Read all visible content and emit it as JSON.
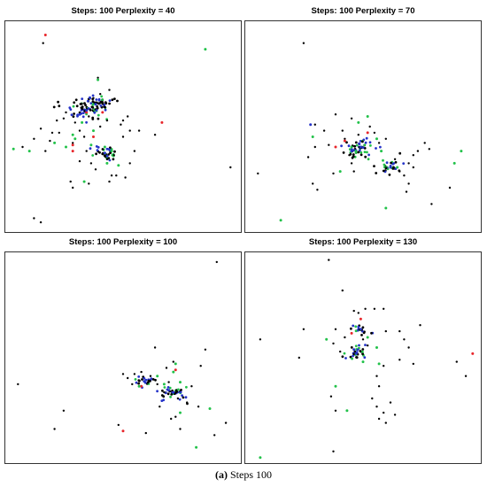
{
  "caption": {
    "label": "(a)",
    "text": "Steps 100"
  },
  "colors": {
    "black": "#000000",
    "red": "#e8262b",
    "green": "#22c24a",
    "blue": "#2432c8"
  },
  "chart_data": [
    {
      "type": "scatter",
      "title": "Steps: 100  Perplexity = 40",
      "xlim": [
        0,
        100
      ],
      "ylim": [
        0,
        100
      ],
      "grid": false,
      "axes_labels": false,
      "clusters": [
        {
          "x": 33,
          "y": 58,
          "n": 55,
          "s": 4
        },
        {
          "x": 39,
          "y": 61,
          "n": 45,
          "s": 3
        },
        {
          "x": 42,
          "y": 37,
          "n": 35,
          "s": 3
        }
      ],
      "series": [
        {
          "color": "black",
          "points": [
            [
              15,
              91
            ],
            [
              39,
              74
            ],
            [
              37,
              64
            ],
            [
              14,
              49
            ],
            [
              6,
              40
            ],
            [
              11,
              44
            ],
            [
              16,
              38
            ],
            [
              22,
              47
            ],
            [
              35,
              55
            ],
            [
              50,
              53
            ],
            [
              53,
              48
            ],
            [
              64,
              46
            ],
            [
              28,
              20
            ],
            [
              27,
              23
            ],
            [
              35,
              22
            ],
            [
              45,
              26
            ],
            [
              51,
              25
            ],
            [
              46,
              36
            ],
            [
              55,
              38
            ],
            [
              57,
              48
            ],
            [
              31,
              48
            ],
            [
              19,
              47
            ],
            [
              11,
              5
            ],
            [
              14,
              3
            ],
            [
              97,
              30
            ],
            [
              47,
              26
            ],
            [
              44,
              23
            ],
            [
              36,
              32
            ],
            [
              31,
              33
            ],
            [
              49,
              51
            ],
            [
              52,
              55
            ],
            [
              43,
              53
            ],
            [
              40,
              50
            ],
            [
              24,
              54
            ],
            [
              21,
              53
            ],
            [
              18,
              43
            ],
            [
              33,
              45
            ],
            [
              34,
              38
            ],
            [
              53,
              32
            ],
            [
              38,
              29
            ],
            [
              50,
              45
            ],
            [
              28,
              42
            ],
            [
              29,
              52
            ],
            [
              40,
              66
            ],
            [
              25,
              57
            ],
            [
              44,
              68
            ]
          ]
        },
        {
          "color": "red",
          "points": [
            [
              16,
              95
            ],
            [
              34,
              57
            ],
            [
              67,
              52
            ],
            [
              28,
              38
            ],
            [
              28,
              41
            ],
            [
              37,
              45
            ],
            [
              41,
              57
            ]
          ]
        },
        {
          "color": "green",
          "points": [
            [
              86,
              88
            ],
            [
              2,
              39
            ],
            [
              9,
              38
            ],
            [
              25,
              40
            ],
            [
              33,
              23
            ],
            [
              43,
              32
            ],
            [
              42,
              40
            ],
            [
              48,
              31
            ],
            [
              28,
              46
            ],
            [
              36,
              41
            ],
            [
              37,
              48
            ],
            [
              39,
              73
            ],
            [
              32,
              52
            ],
            [
              29,
              44
            ],
            [
              45,
              38
            ],
            [
              20,
              42
            ]
          ]
        },
        {
          "color": "blue",
          "points": [
            [
              34,
              58
            ],
            [
              38,
              61
            ],
            [
              42,
              37
            ],
            [
              31,
              56
            ]
          ]
        }
      ]
    },
    {
      "type": "scatter",
      "title": "Steps: 100  Perplexity = 70",
      "xlim": [
        0,
        100
      ],
      "ylim": [
        0,
        100
      ],
      "grid": false,
      "axes_labels": false,
      "clusters": [
        {
          "x": 49,
          "y": 40,
          "n": 55,
          "s": 3.5
        },
        {
          "x": 62,
          "y": 30,
          "n": 30,
          "s": 3
        }
      ],
      "series": [
        {
          "color": "black",
          "points": [
            [
              24,
              91
            ],
            [
              29,
              51
            ],
            [
              35,
              41
            ],
            [
              41,
              48
            ],
            [
              44,
              36
            ],
            [
              46,
              28
            ],
            [
              45,
              54
            ],
            [
              55,
              47
            ],
            [
              57,
              42
            ],
            [
              64,
              34
            ],
            [
              70,
              32
            ],
            [
              72,
              30
            ],
            [
              74,
              38
            ],
            [
              77,
              42
            ],
            [
              79,
              39
            ],
            [
              80,
              12
            ],
            [
              88,
              20
            ],
            [
              69,
              18
            ],
            [
              4,
              27
            ],
            [
              30,
              19
            ],
            [
              28,
              22
            ],
            [
              26,
              35
            ],
            [
              29,
              40
            ],
            [
              38,
              56
            ],
            [
              53,
              50
            ],
            [
              60,
              44
            ],
            [
              66,
              28
            ],
            [
              68,
              26
            ],
            [
              70,
              22
            ],
            [
              45,
              32
            ],
            [
              37,
              27
            ],
            [
              72,
              36
            ],
            [
              42,
              44
            ],
            [
              33,
              48
            ],
            [
              48,
              46
            ]
          ]
        },
        {
          "color": "red",
          "points": [
            [
              42,
              43
            ],
            [
              38,
              40
            ],
            [
              52,
              47
            ]
          ]
        },
        {
          "color": "green",
          "points": [
            [
              28,
              45
            ],
            [
              40,
              28
            ],
            [
              48,
              52
            ],
            [
              52,
              55
            ],
            [
              56,
              44
            ],
            [
              58,
              38
            ],
            [
              65,
              30
            ],
            [
              93,
              38
            ],
            [
              90,
              32
            ],
            [
              60,
              10
            ],
            [
              14,
              4
            ],
            [
              45,
              40
            ]
          ]
        },
        {
          "color": "blue",
          "points": [
            [
              27,
              51
            ],
            [
              49,
              40
            ],
            [
              62,
              30
            ],
            [
              45,
              38
            ]
          ]
        }
      ]
    },
    {
      "type": "scatter",
      "title": "Steps: 100  Perplexity = 100",
      "xlim": [
        0,
        100
      ],
      "ylim": [
        0,
        100
      ],
      "grid": false,
      "axes_labels": false,
      "clusters": [
        {
          "x": 60,
          "y": 39,
          "n": 22,
          "s": 2.5
        },
        {
          "x": 72,
          "y": 33,
          "n": 38,
          "s": 3
        }
      ],
      "series": [
        {
          "color": "black",
          "points": [
            [
              91,
              97
            ],
            [
              64,
              55
            ],
            [
              50,
              42
            ],
            [
              52,
              40
            ],
            [
              54,
              37
            ],
            [
              55,
              42
            ],
            [
              58,
              43
            ],
            [
              62,
              41
            ],
            [
              65,
              37
            ],
            [
              68,
              33
            ],
            [
              70,
              38
            ],
            [
              74,
              30
            ],
            [
              78,
              28
            ],
            [
              80,
              36
            ],
            [
              84,
              46
            ],
            [
              86,
              54
            ],
            [
              95,
              18
            ],
            [
              4,
              37
            ],
            [
              24,
              24
            ],
            [
              20,
              15
            ],
            [
              48,
              17
            ],
            [
              60,
              13
            ],
            [
              71,
              20
            ],
            [
              73,
              21
            ],
            [
              75,
              15
            ],
            [
              90,
              12
            ],
            [
              72,
              48
            ],
            [
              69,
              45
            ],
            [
              66,
              26
            ],
            [
              83,
              26
            ]
          ]
        },
        {
          "color": "red",
          "points": [
            [
              50,
              14
            ],
            [
              58,
              36
            ],
            [
              73,
              44
            ]
          ]
        },
        {
          "color": "green",
          "points": [
            [
              73,
              47
            ],
            [
              65,
              41
            ],
            [
              72,
              43
            ],
            [
              75,
              38
            ],
            [
              88,
              25
            ],
            [
              75,
              23
            ],
            [
              82,
              6
            ],
            [
              57,
              36
            ],
            [
              68,
              37
            ]
          ]
        },
        {
          "color": "blue",
          "points": [
            [
              60,
              39
            ],
            [
              72,
              33
            ],
            [
              70,
              34
            ]
          ]
        }
      ]
    },
    {
      "type": "scatter",
      "title": "Steps: 100  Perplexity = 130",
      "xlim": [
        0,
        100
      ],
      "ylim": [
        0,
        100
      ],
      "grid": false,
      "axes_labels": false,
      "clusters": [
        {
          "x": 49,
          "y": 64,
          "n": 20,
          "s": 2
        },
        {
          "x": 47,
          "y": 52,
          "n": 30,
          "s": 2.5
        }
      ],
      "series": [
        {
          "color": "black",
          "points": [
            [
              35,
              98
            ],
            [
              41,
              83
            ],
            [
              46,
              73
            ],
            [
              51,
              74
            ],
            [
              55,
              74
            ],
            [
              59,
              74
            ],
            [
              48,
              72
            ],
            [
              24,
              64
            ],
            [
              37,
              57
            ],
            [
              38,
              64
            ],
            [
              60,
              63
            ],
            [
              66,
              63
            ],
            [
              68,
              59
            ],
            [
              70,
              55
            ],
            [
              66,
              49
            ],
            [
              59,
              46
            ],
            [
              56,
              41
            ],
            [
              57,
              36
            ],
            [
              54,
              30
            ],
            [
              56,
              26
            ],
            [
              62,
              28
            ],
            [
              59,
              23
            ],
            [
              57,
              20
            ],
            [
              60,
              18
            ],
            [
              64,
              22
            ],
            [
              40,
              53
            ],
            [
              50,
              59
            ],
            [
              52,
              56
            ],
            [
              42,
              60
            ],
            [
              22,
              50
            ],
            [
              38,
              24
            ],
            [
              36,
              31
            ],
            [
              37,
              4
            ],
            [
              91,
              48
            ],
            [
              95,
              41
            ],
            [
              5,
              59
            ],
            [
              75,
              66
            ],
            [
              72,
              47
            ]
          ]
        },
        {
          "color": "red",
          "points": [
            [
              49,
              69
            ],
            [
              98,
              52
            ],
            [
              45,
              62
            ]
          ]
        },
        {
          "color": "green",
          "points": [
            [
              34,
              59
            ],
            [
              38,
              36
            ],
            [
              43,
              24
            ],
            [
              56,
              55
            ],
            [
              52,
              60
            ],
            [
              57,
              47
            ],
            [
              5,
              1
            ],
            [
              50,
              48
            ]
          ]
        },
        {
          "color": "blue",
          "points": [
            [
              49,
              64
            ],
            [
              47,
              52
            ],
            [
              46,
              54
            ]
          ]
        }
      ]
    }
  ]
}
